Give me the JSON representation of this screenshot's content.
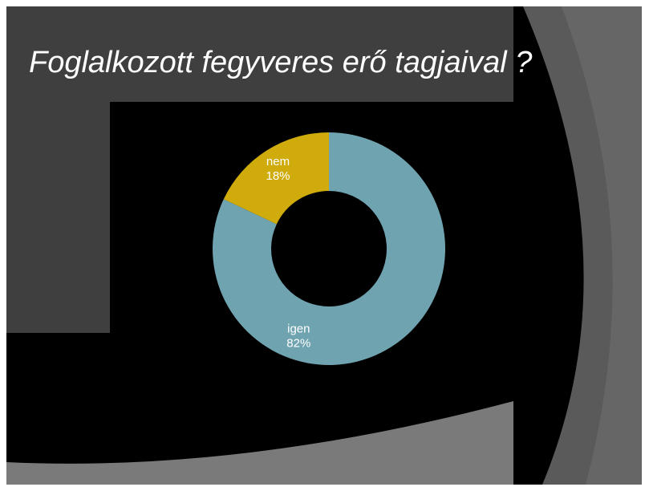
{
  "chart_data": {
    "type": "donut",
    "title": "Foglalkozott fegyveres erő tagjaival ?",
    "categories": [
      "igen",
      "nem"
    ],
    "values": [
      82,
      18
    ],
    "value_labels": [
      "82%",
      "18%"
    ],
    "colors": [
      "#6fa3b0",
      "#cfab0c"
    ]
  }
}
